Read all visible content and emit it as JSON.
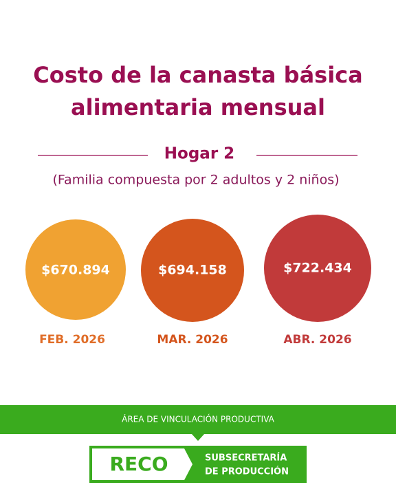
{
  "header": {
    "title_lines": [
      "Costo de la canasta básica",
      "alimentaria mensual"
    ],
    "household": "Hogar 2",
    "description": "(Familia compuesta por 2 adultos y 2 niños)"
  },
  "costs": [
    {
      "value": "$670.894",
      "month": "FEB. 2026"
    },
    {
      "value": "$694.158",
      "month": "MAR. 2026"
    },
    {
      "value": "$722.434",
      "month": "ABR. 2026"
    }
  ],
  "footer": {
    "band": "ÁREA DE VINCULACIÓN PRODUCTIVA",
    "logo": "RECO",
    "org_lines": [
      "SUBSECRETARÍA",
      "DE PRODUCCIÓN"
    ]
  }
}
